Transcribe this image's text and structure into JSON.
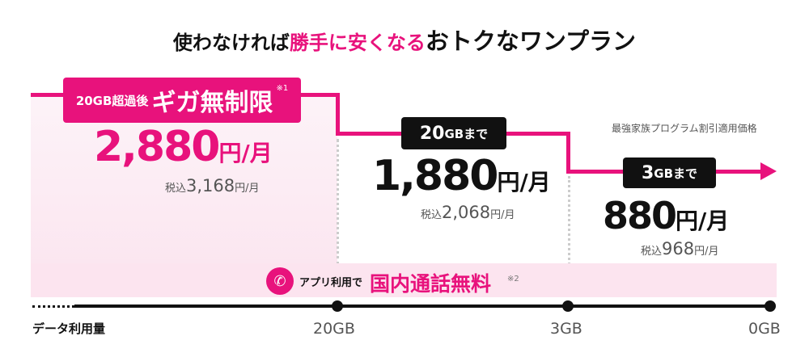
{
  "title": {
    "part1": "使わなければ",
    "part2": "勝手に安くなる",
    "part3": "おトクなワンプラン"
  },
  "tiers": [
    {
      "badge_small": "20GB超過後",
      "badge_big": "ギガ無制限",
      "badge_note": "※1",
      "price": "2,880",
      "unit": "円/月",
      "tax_label": "税込",
      "tax_price": "3,168",
      "tax_unit": "円/月"
    },
    {
      "badge_num": "20",
      "badge_unit": "GBまで",
      "price": "1,880",
      "unit": "円/月",
      "tax_label": "税込",
      "tax_price": "2,068",
      "tax_unit": "円/月"
    },
    {
      "badge_num": "3",
      "badge_unit": "GBまで",
      "price": "880",
      "unit": "円/月",
      "tax_label": "税込",
      "tax_price": "968",
      "tax_unit": "円/月"
    }
  ],
  "discount_note": "最強家族プログラム割引適用価格",
  "call_band": {
    "prefix": "アプリ利用で",
    "highlight": "国内通話無料",
    "note": "※2",
    "icon": "phone-icon"
  },
  "axis": {
    "label": "データ利用量",
    "ticks": [
      "20GB",
      "3GB",
      "0GB"
    ]
  },
  "colors": {
    "accent": "#e8127c",
    "band": "#fce4ef",
    "badge": "#111111"
  }
}
